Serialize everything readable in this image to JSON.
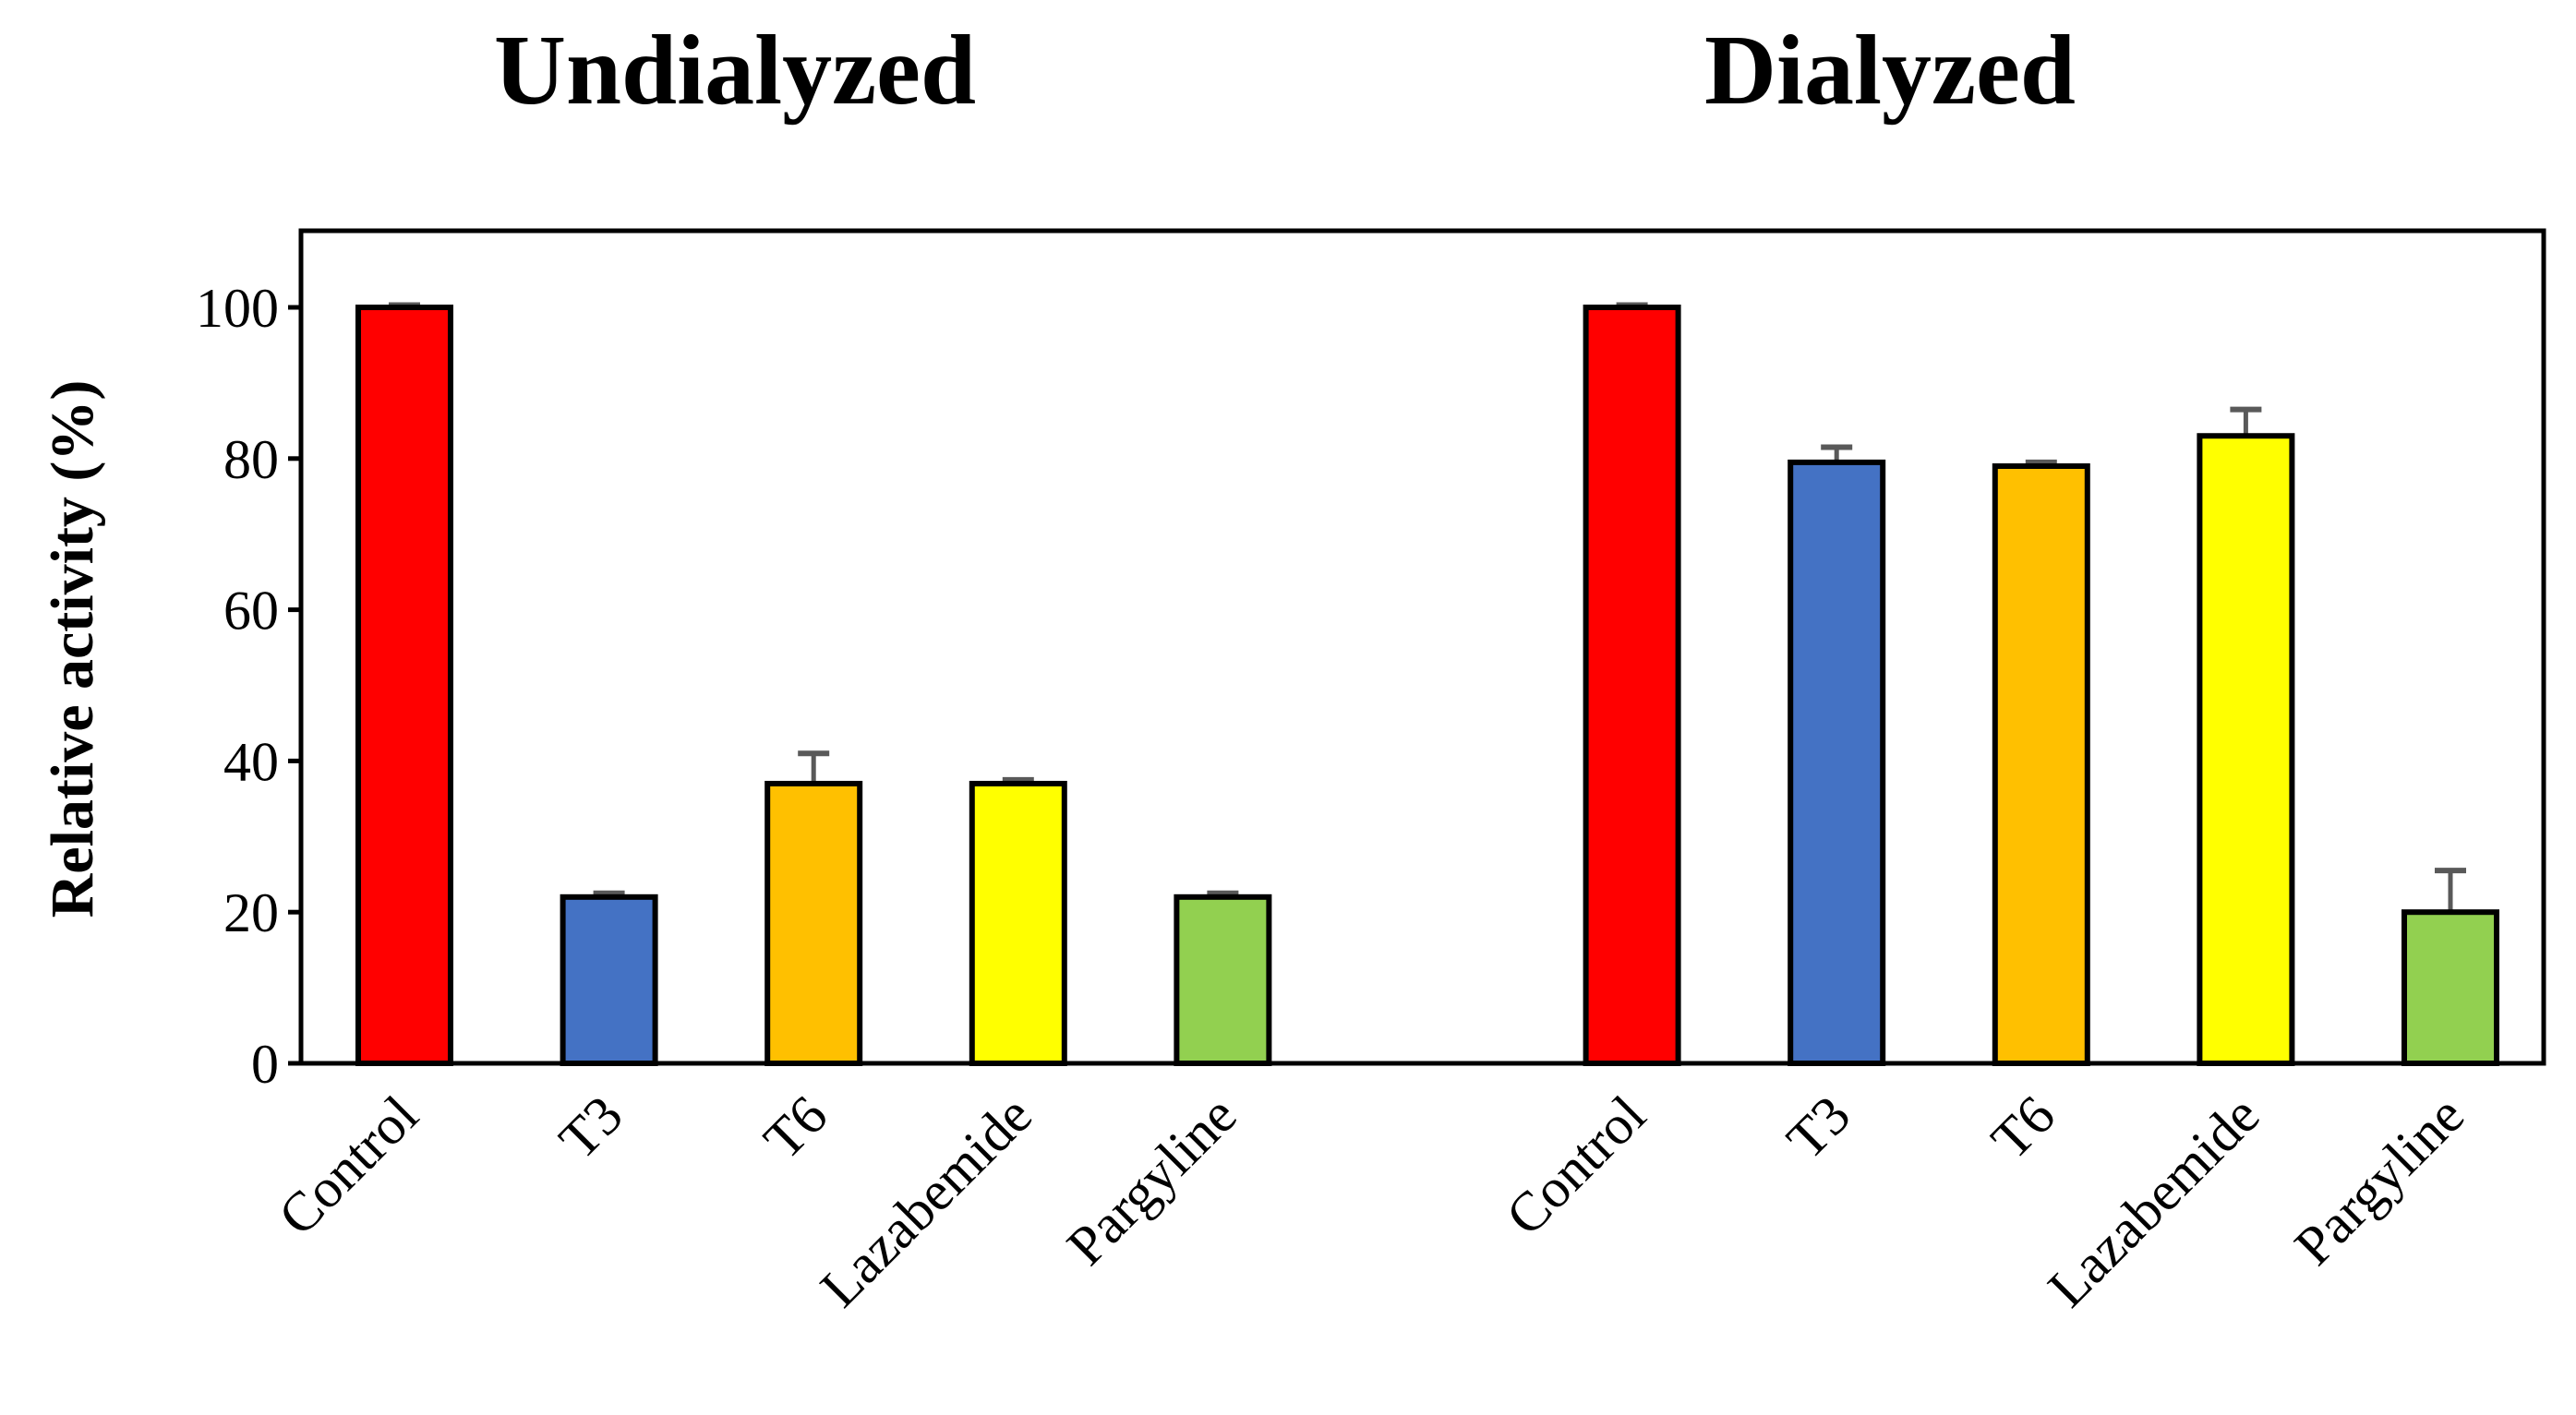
{
  "chart_data": {
    "type": "bar",
    "panel_titles": [
      "Undialyzed",
      "Dialyzed"
    ],
    "ylabel": "Relative activity (%)",
    "xlabel": "",
    "ylim": [
      0,
      110
    ],
    "yticks": [
      0,
      20,
      40,
      60,
      80,
      100
    ],
    "grid": false,
    "legend": "none",
    "groups": [
      {
        "title": "Undialyzed",
        "categories": [
          "Control",
          "T3",
          "T6",
          "Lazabemide",
          "Pargyline"
        ],
        "values": [
          100,
          22,
          37,
          37,
          22
        ],
        "errors": [
          0.3,
          0.5,
          4,
          0.5,
          0.5
        ]
      },
      {
        "title": "Dialyzed",
        "categories": [
          "Control",
          "T3",
          "T6",
          "Lazabemide",
          "Pargyline"
        ],
        "values": [
          100,
          79.5,
          79,
          83,
          20
        ],
        "errors": [
          0.3,
          2,
          0.5,
          3.5,
          5.5
        ]
      }
    ],
    "colors": [
      "#FF0000",
      "#4472C4",
      "#FFC000",
      "#FFFF00",
      "#92D050"
    ],
    "error_bar_color": "#595959"
  }
}
